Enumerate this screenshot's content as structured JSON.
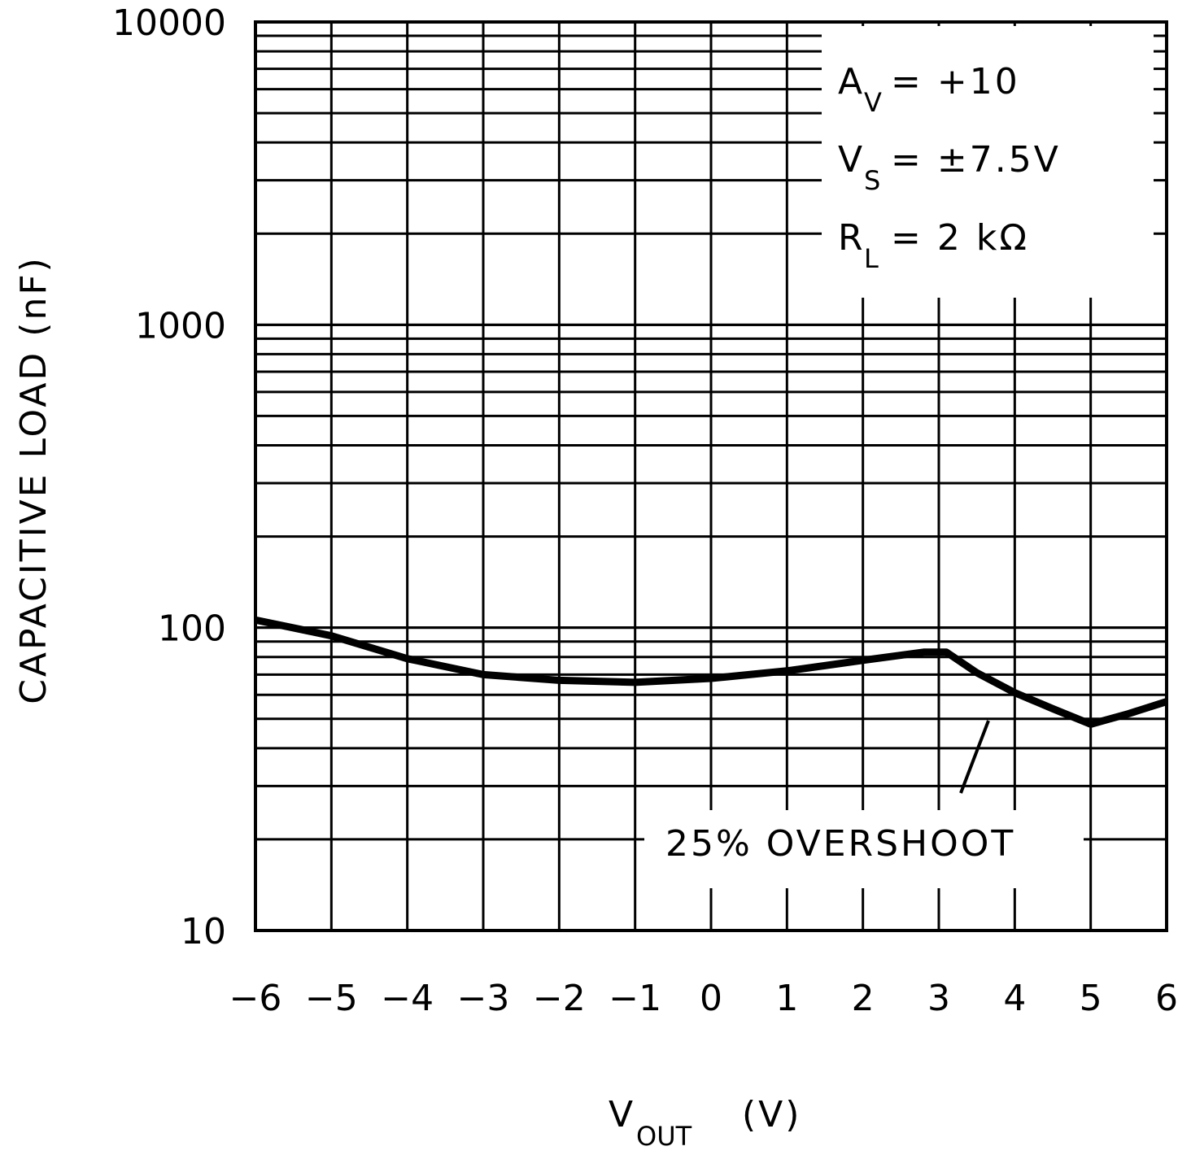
{
  "chart_data": {
    "type": "line",
    "title": "",
    "xlabel": "V",
    "xlabel_sub": "OUT",
    "xlabel_unit": "(V)",
    "ylabel": "CAPACITIVE LOAD (nF)",
    "xlim": [
      -6,
      6
    ],
    "ylim": [
      10,
      10000
    ],
    "yscale": "log",
    "grid": true,
    "x_ticks": [
      "−6",
      "−5",
      "−4",
      "−3",
      "−2",
      "−1",
      "0",
      "1",
      "2",
      "3",
      "4",
      "5",
      "6"
    ],
    "y_ticks": [
      "10",
      "100",
      "1000",
      "10000"
    ],
    "series": [
      {
        "name": "25% OVERSHOOT",
        "x": [
          -6,
          -5,
          -4,
          -3,
          -2,
          -1,
          0,
          1,
          2,
          2.8,
          3.1,
          3.5,
          4,
          4.5,
          5,
          5.5,
          6
        ],
        "y": [
          106,
          94,
          79,
          70,
          67,
          66,
          68,
          72,
          78,
          83,
          83,
          71,
          61,
          54,
          48,
          52,
          57
        ]
      }
    ],
    "legend": {
      "placement": "top-right",
      "lines": [
        {
          "main": "A",
          "sub": "V",
          "rest": " = +10"
        },
        {
          "main": "V",
          "sub": "S",
          "rest": " = ±7.5V"
        },
        {
          "main": "R",
          "sub": "L",
          "rest": " = 2 kΩ"
        }
      ]
    },
    "annotation": "25% OVERSHOOT"
  }
}
